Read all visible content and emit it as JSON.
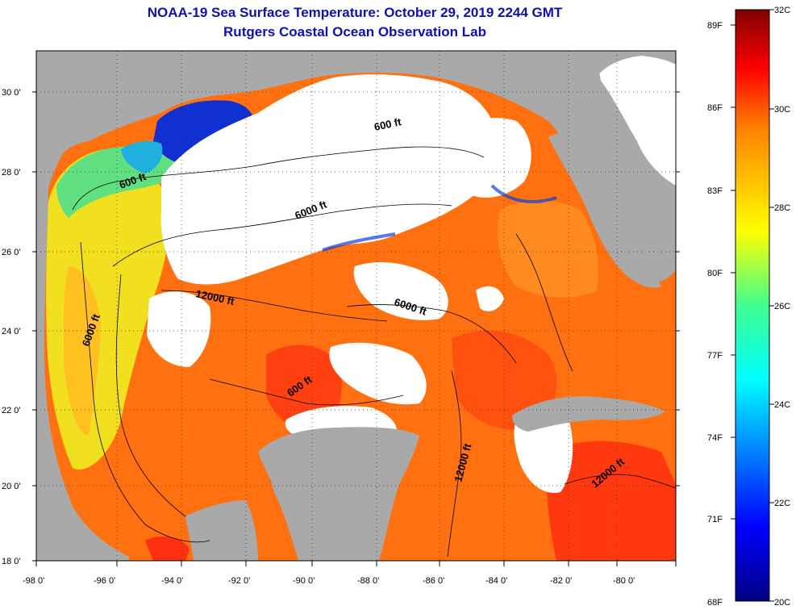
{
  "title": "NOAA-19 Sea Surface Temperature:  October 29, 2019 2244 GMT",
  "subtitle": "Rutgers Coastal Ocean Observation Lab",
  "map": {
    "lat_ticks": [
      "30 0'",
      "28 0'",
      "26 0'",
      "24 0'",
      "22 0'",
      "20 0'",
      "18 0'"
    ],
    "lon_ticks": [
      "-98 0'",
      "-96 0'",
      "-94 0'",
      "-92 0'",
      "-90 0'",
      "-88 0'",
      "-86 0'",
      "-84 0'",
      "-82 0'",
      "-80 0'"
    ],
    "contour_labels": [
      "600 ft",
      "600 ft",
      "6000 ft",
      "12000 ft",
      "6000 ft",
      "6000 ft",
      "600 ft",
      "12000 ft",
      "12000 ft"
    ],
    "colors": {
      "land": "#a9a9a9",
      "cloud": "#ffffff"
    }
  },
  "colorbar": {
    "fahrenheit_labels": [
      "89F",
      "86F",
      "83F",
      "80F",
      "77F",
      "74F",
      "71F",
      "68F"
    ],
    "celsius_labels": [
      "32C",
      "30C",
      "28C",
      "26C",
      "24C",
      "22C",
      "20C"
    ],
    "colors": [
      "#800000",
      "#ff0000",
      "#ff8000",
      "#ffff00",
      "#00ffff",
      "#0000ff",
      "#000080"
    ]
  }
}
